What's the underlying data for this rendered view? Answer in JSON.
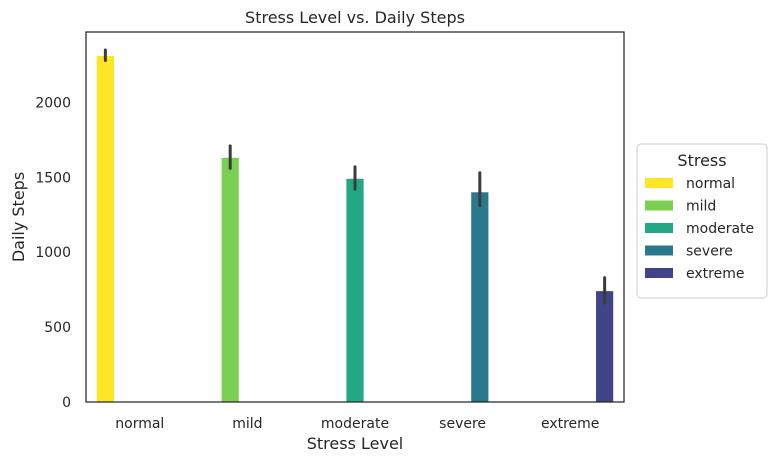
{
  "chart_data": {
    "type": "bar",
    "title": "Stress Level vs. Daily Steps",
    "xlabel": "Stress Level",
    "ylabel": "Daily Steps",
    "categories": [
      "normal",
      "mild",
      "moderate",
      "severe",
      "extreme"
    ],
    "ylim": [
      0,
      2470
    ],
    "yticks": [
      0,
      500,
      1000,
      1500,
      2000
    ],
    "grid": false,
    "legend": {
      "title": "Stress",
      "placement": "right"
    },
    "series": [
      {
        "name": "normal",
        "color": "#fde725",
        "values": [
          2310,
          null,
          null,
          null,
          null
        ],
        "error": [
          [
            2280,
            2350
          ],
          null,
          null,
          null,
          null
        ]
      },
      {
        "name": "mild",
        "color": "#7ad151",
        "values": [
          null,
          1630,
          null,
          null,
          null
        ],
        "error": [
          null,
          [
            1560,
            1710
          ],
          null,
          null,
          null
        ]
      },
      {
        "name": "moderate",
        "color": "#22a884",
        "values": [
          null,
          null,
          1490,
          null,
          null
        ],
        "error": [
          null,
          null,
          [
            1420,
            1570
          ],
          null,
          null
        ]
      },
      {
        "name": "severe",
        "color": "#2a788e",
        "values": [
          null,
          null,
          null,
          1400,
          null
        ],
        "error": [
          null,
          null,
          null,
          [
            1310,
            1530
          ],
          null
        ]
      },
      {
        "name": "extreme",
        "color": "#414487",
        "values": [
          null,
          null,
          null,
          null,
          740
        ],
        "error": [
          null,
          null,
          null,
          null,
          [
            660,
            830
          ]
        ]
      }
    ]
  }
}
